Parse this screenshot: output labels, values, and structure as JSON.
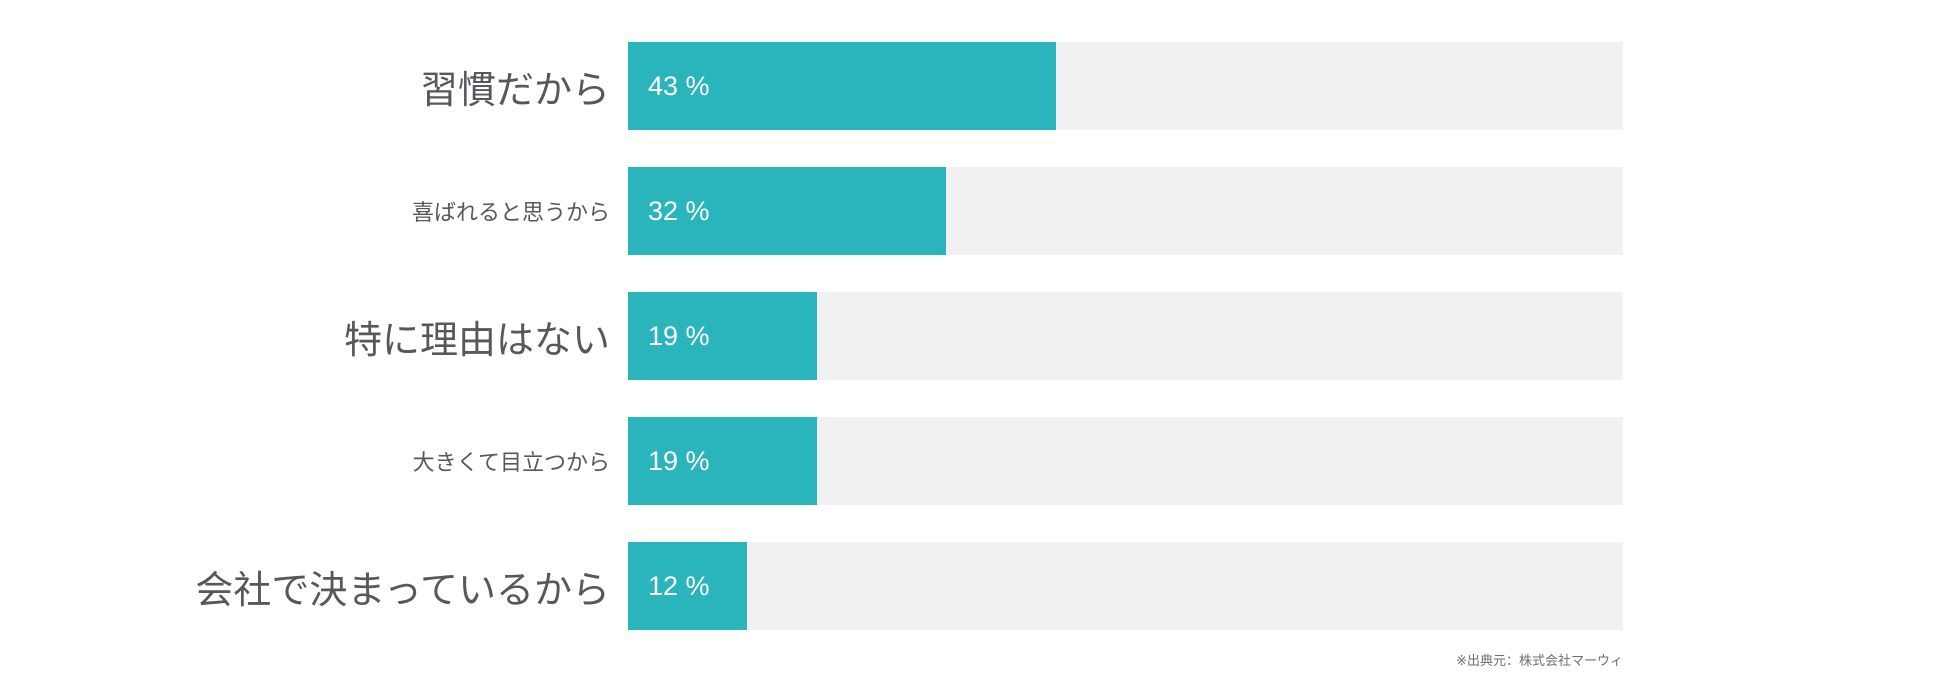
{
  "chart_data": {
    "type": "bar",
    "orientation": "horizontal",
    "categories": [
      "習慣だから",
      "喜ばれると思うから",
      "特に理由はない",
      "大きくて目立つから",
      "会社で決まっているから"
    ],
    "values": [
      43,
      32,
      19,
      19,
      12
    ],
    "value_labels": [
      "43 %",
      "32 %",
      "19 %",
      "19 %",
      "12 %"
    ],
    "emphasized_labels": [
      true,
      false,
      true,
      false,
      true
    ],
    "xlim": [
      0,
      100
    ],
    "grid": false,
    "legend": false,
    "bar_color": "#2ab4bc",
    "track_color": "#f1f1f1",
    "label_color": "#55585c",
    "value_text_color": "#ffffff"
  },
  "source_note": "※出典元：株式会社マーウィ"
}
